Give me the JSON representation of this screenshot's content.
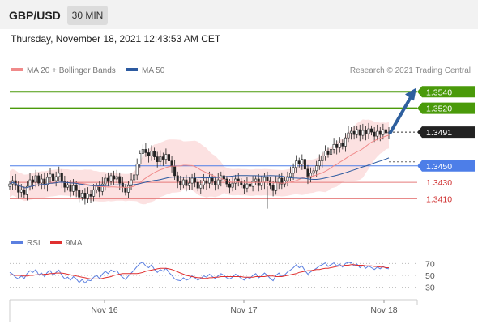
{
  "header": {
    "symbol": "GBP/USD",
    "timeframe": "30 MIN"
  },
  "timestamp": "Thursday, November 18, 2021 12:43:53 AM CET",
  "legend": {
    "ma20_label": "MA 20 + Bollinger Bands",
    "ma50_label": "MA 50",
    "copyright": "Research © 2021 Trading Central",
    "rsi_label": "RSI",
    "rsi_ma_label": "9MA"
  },
  "colors": {
    "resistance": "#4a9a0a",
    "support": "#4d7ee8",
    "pivot_red": "#e57a7a",
    "current_price": "#222222",
    "ma20": "#f08a8a",
    "ma50": "#2c5aa0",
    "bollinger_fill": "#fbdada",
    "candle": "#2a7a2a",
    "candle_down": "#a01818",
    "arrow": "#2e5f9e",
    "rsi": "#5b7fe0",
    "rsi_ma": "#e03030"
  },
  "chart_data": [
    {
      "type": "candlestick",
      "title": "GBP/USD 30 MIN",
      "x_tick_labels": [
        "Nov 16",
        "Nov 17",
        "Nov 18"
      ],
      "ylim": [
        1.3375,
        1.3555
      ],
      "levels": [
        {
          "label": "1.3540",
          "value": 1.354,
          "kind": "resistance"
        },
        {
          "label": "1.3520",
          "value": 1.352,
          "kind": "resistance"
        },
        {
          "label": "1.3491",
          "value": 1.3491,
          "kind": "current"
        },
        {
          "label": "1.3450",
          "value": 1.345,
          "kind": "support"
        },
        {
          "label": "1.3430",
          "value": 1.343,
          "kind": "pivot"
        },
        {
          "label": "1.3410",
          "value": 1.341,
          "kind": "pivot"
        }
      ],
      "closes": [
        1.3428,
        1.3432,
        1.3426,
        1.3418,
        1.3421,
        1.3415,
        1.3425,
        1.3433,
        1.343,
        1.3438,
        1.3429,
        1.3434,
        1.3427,
        1.3436,
        1.344,
        1.3432,
        1.3437,
        1.3441,
        1.3431,
        1.3424,
        1.3427,
        1.3419,
        1.3426,
        1.342,
        1.3412,
        1.3417,
        1.341,
        1.3416,
        1.3413,
        1.3421,
        1.3425,
        1.3419,
        1.3428,
        1.3435,
        1.3431,
        1.3438,
        1.3434,
        1.3437,
        1.3429,
        1.3424,
        1.3418,
        1.3426,
        1.3433,
        1.3439,
        1.3452,
        1.3465,
        1.347,
        1.3466,
        1.3462,
        1.3468,
        1.3461,
        1.3455,
        1.3461,
        1.3458,
        1.3464,
        1.3456,
        1.3449,
        1.3438,
        1.3431,
        1.3427,
        1.3433,
        1.3426,
        1.3429,
        1.3435,
        1.343,
        1.3423,
        1.3427,
        1.3432,
        1.3429,
        1.3436,
        1.3431,
        1.3427,
        1.3433,
        1.3438,
        1.3434,
        1.3428,
        1.3424,
        1.3429,
        1.3434,
        1.3431,
        1.3427,
        1.3423,
        1.3428,
        1.3425,
        1.3431,
        1.3434,
        1.3426,
        1.343,
        1.3436,
        1.3432,
        1.3426,
        1.342,
        1.343,
        1.3435,
        1.3428,
        1.3432,
        1.3437,
        1.3441,
        1.3448,
        1.3456,
        1.3452,
        1.3458,
        1.3446,
        1.3436,
        1.3441,
        1.3444,
        1.345,
        1.3456,
        1.3462,
        1.3468,
        1.3464,
        1.347,
        1.3476,
        1.3472,
        1.3478,
        1.3474,
        1.3484,
        1.349,
        1.3492,
        1.3488,
        1.3494,
        1.3487,
        1.3493,
        1.3489,
        1.3495,
        1.3491,
        1.3486,
        1.3492,
        1.3488,
        1.3494,
        1.349,
        1.3491
      ],
      "series": [
        {
          "name": "MA 20 + Bollinger Bands"
        },
        {
          "name": "MA 50"
        }
      ]
    },
    {
      "type": "line",
      "title": "RSI",
      "y_tick_labels": [
        "70",
        "50",
        "30"
      ],
      "ylim": [
        20,
        80
      ],
      "series": [
        {
          "name": "RSI",
          "values": [
            55,
            52,
            47,
            44,
            49,
            45,
            53,
            58,
            55,
            60,
            51,
            54,
            48,
            55,
            58,
            50,
            55,
            59,
            50,
            44,
            47,
            42,
            48,
            44,
            38,
            43,
            37,
            42,
            41,
            47,
            50,
            45,
            52,
            57,
            53,
            59,
            56,
            58,
            51,
            47,
            43,
            49,
            54,
            59,
            65,
            70,
            72,
            66,
            63,
            68,
            60,
            55,
            60,
            57,
            62,
            55,
            50,
            44,
            42,
            41,
            46,
            42,
            44,
            49,
            46,
            42,
            45,
            49,
            47,
            52,
            48,
            45,
            49,
            53,
            50,
            46,
            44,
            47,
            52,
            49,
            45,
            42,
            47,
            45,
            50,
            53,
            46,
            49,
            54,
            50,
            45,
            41,
            50,
            54,
            48,
            51,
            56,
            59,
            63,
            68,
            63,
            66,
            58,
            52,
            56,
            59,
            62,
            66,
            68,
            71,
            65,
            68,
            71,
            66,
            69,
            64,
            70,
            72,
            71,
            66,
            69,
            63,
            67,
            62,
            66,
            63,
            60,
            64,
            61,
            65,
            62,
            61
          ]
        },
        {
          "name": "9MA",
          "values": [
            51,
            51,
            50,
            50,
            50,
            49,
            49,
            50,
            50,
            51,
            51,
            51,
            52,
            52,
            53,
            53,
            54,
            54,
            54,
            53,
            52,
            51,
            50,
            49,
            48,
            47,
            46,
            45,
            44,
            44,
            44,
            44,
            45,
            46,
            47,
            48,
            50,
            51,
            52,
            53,
            53,
            53,
            53,
            53,
            53,
            54,
            55,
            57,
            58,
            59,
            60,
            61,
            62,
            62,
            62,
            61,
            60,
            58,
            56,
            54,
            52,
            50,
            49,
            48,
            47,
            46,
            46,
            45,
            45,
            46,
            46,
            47,
            47,
            48,
            48,
            48,
            48,
            48,
            48,
            48,
            48,
            47,
            47,
            47,
            47,
            48,
            48,
            48,
            48,
            49,
            49,
            49,
            48,
            48,
            48,
            49,
            50,
            51,
            52,
            53,
            55,
            56,
            57,
            58,
            58,
            59,
            60,
            60,
            61,
            62,
            62,
            63,
            64,
            65,
            66,
            66,
            67,
            67,
            68,
            68,
            67,
            67,
            67,
            66,
            66,
            66,
            65,
            65,
            64,
            64,
            63,
            63
          ]
        }
      ]
    }
  ]
}
